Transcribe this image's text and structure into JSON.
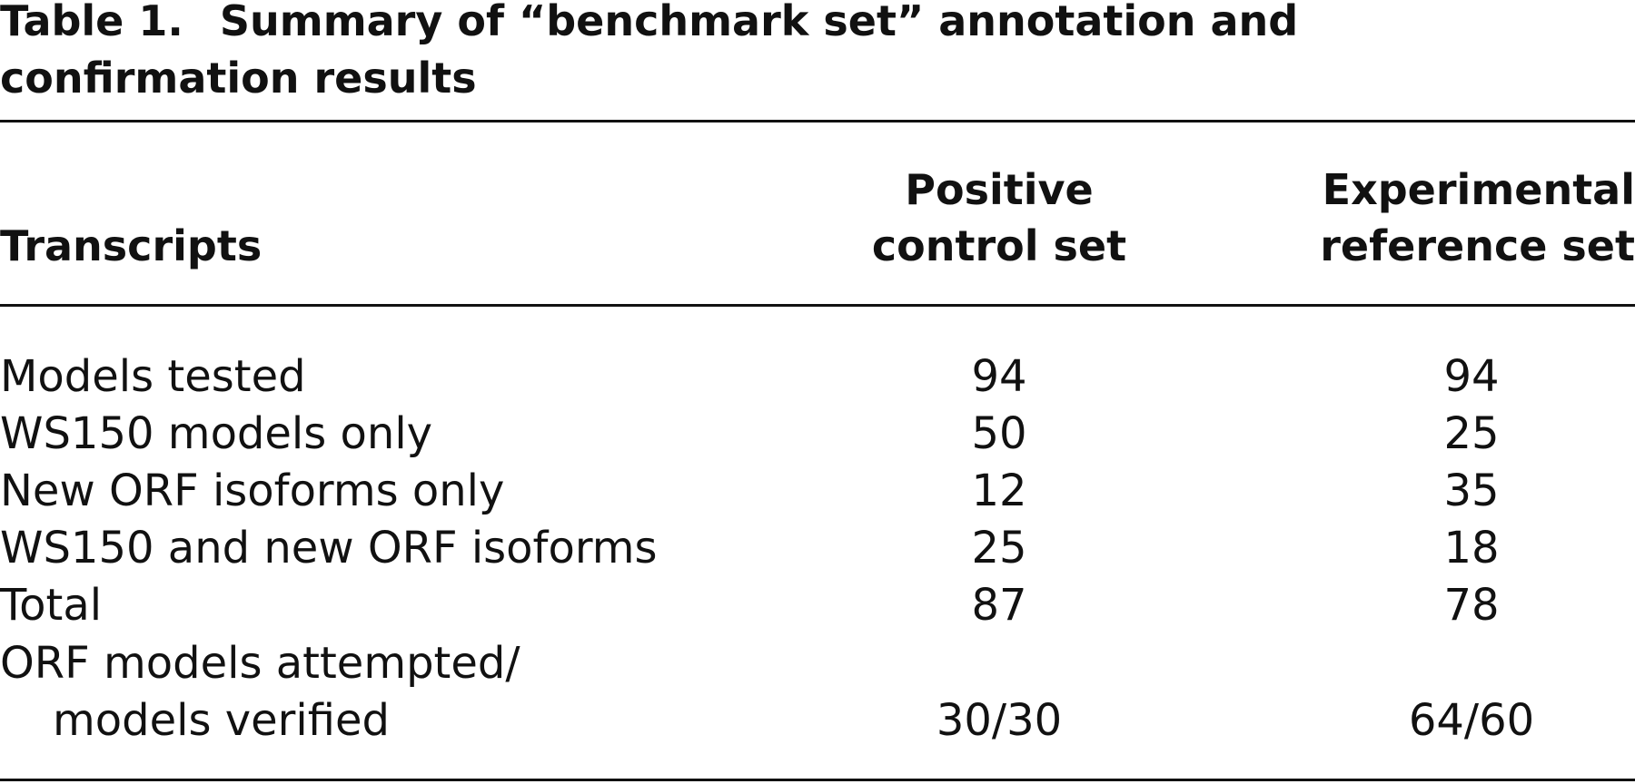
{
  "table": {
    "label": "Table 1.",
    "title_line1": "Summary of “benchmark set” annotation and",
    "title_line2": "confirmation results",
    "headers": {
      "col0": "Transcripts",
      "col1_line1": "Positive",
      "col1_line2": "control set",
      "col2_line1": "Experimental",
      "col2_line2": "reference set"
    },
    "rows": [
      {
        "label": "Models tested",
        "positive": "94",
        "experimental": "94"
      },
      {
        "label": "WS150 models only",
        "positive": "50",
        "experimental": "25"
      },
      {
        "label": "New ORF isoforms only",
        "positive": "12",
        "experimental": "35"
      },
      {
        "label": "WS150 and new ORF isoforms",
        "positive": "25",
        "experimental": "18"
      },
      {
        "label": "Total",
        "positive": "87",
        "experimental": "78"
      }
    ],
    "final_row": {
      "label_line1": "ORF models attempted/",
      "label_line2": "models verified",
      "positive": "30/30",
      "experimental": "64/60"
    }
  }
}
